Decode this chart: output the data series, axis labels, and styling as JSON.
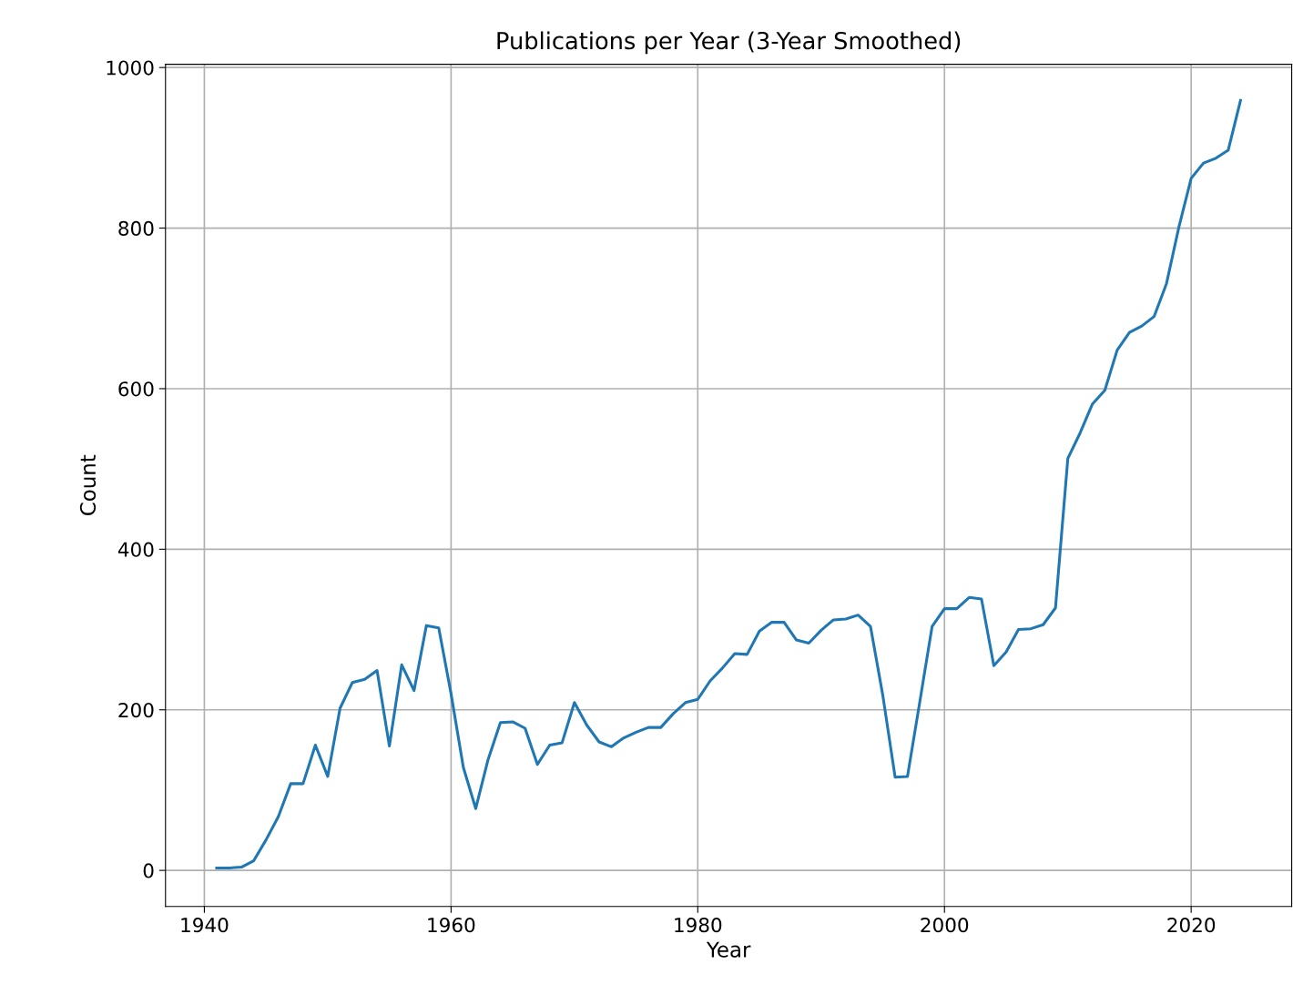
{
  "chart_data": {
    "type": "line",
    "title": "Publications per Year (3-Year Smoothed)",
    "xlabel": "Year",
    "ylabel": "Count",
    "x": [
      1941,
      1942,
      1943,
      1944,
      1945,
      1946,
      1947,
      1948,
      1949,
      1950,
      1951,
      1952,
      1953,
      1954,
      1955,
      1956,
      1957,
      1958,
      1959,
      1960,
      1961,
      1962,
      1963,
      1964,
      1965,
      1966,
      1967,
      1968,
      1969,
      1970,
      1971,
      1972,
      1973,
      1974,
      1975,
      1976,
      1977,
      1978,
      1979,
      1980,
      1981,
      1982,
      1983,
      1984,
      1985,
      1986,
      1987,
      1988,
      1989,
      1990,
      1991,
      1992,
      1993,
      1994,
      1995,
      1996,
      1997,
      1998,
      1999,
      2000,
      2001,
      2002,
      2003,
      2004,
      2005,
      2006,
      2007,
      2008,
      2009,
      2010,
      2011,
      2012,
      2013,
      2014,
      2015,
      2016,
      2017,
      2018,
      2019,
      2020,
      2021,
      2022,
      2023,
      2024
    ],
    "series": [
      {
        "color": "#1f77b4",
        "values": [
          3,
          3,
          4,
          12,
          38,
          67,
          108,
          108,
          156,
          117,
          202,
          234,
          238,
          249,
          155,
          256,
          224,
          305,
          302,
          220,
          128,
          77,
          138,
          184,
          185,
          177,
          132,
          156,
          159,
          209,
          181,
          160,
          154,
          165,
          172,
          178,
          178,
          195,
          209,
          213,
          236,
          252,
          270,
          269,
          298,
          309,
          309,
          287,
          283,
          299,
          312,
          313,
          318,
          304,
          218,
          116,
          117,
          210,
          304,
          326,
          326,
          340,
          338,
          255,
          272,
          300,
          301,
          306,
          327,
          513,
          545,
          581,
          598,
          648,
          670,
          678,
          690,
          731,
          801,
          862,
          881,
          887,
          897,
          959
        ]
      }
    ],
    "xlim": [
      1936.85,
      2028.15
    ],
    "xticks": [
      1940,
      1960,
      1980,
      2000,
      2020
    ],
    "ylim": [
      -45,
      1004
    ],
    "yticks": [
      0,
      200,
      400,
      600,
      800,
      1000
    ],
    "grid": true,
    "legend": false,
    "marker": "none",
    "line_style": "solid"
  }
}
